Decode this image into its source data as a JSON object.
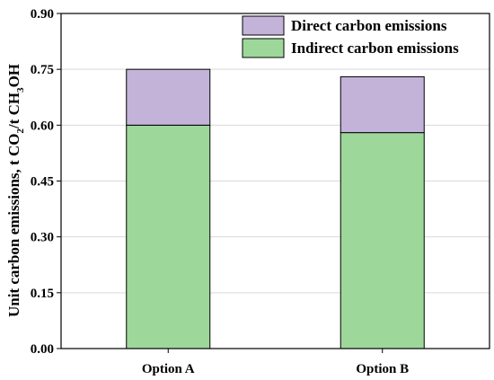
{
  "chart_data": {
    "type": "bar",
    "stacked": true,
    "categories": [
      "Option A",
      "Option B"
    ],
    "series": [
      {
        "name": "Indirect carbon emissions",
        "values": [
          0.6,
          0.58
        ],
        "color": "#9dd89a"
      },
      {
        "name": "Direct carbon emissions",
        "values": [
          0.15,
          0.15
        ],
        "color": "#c3b3d9"
      }
    ],
    "ylabel": "Unit carbon emissions, t CO2/t CH3OH",
    "ylim": [
      0,
      0.9
    ],
    "yticks": [
      "0.00",
      "0.15",
      "0.30",
      "0.45",
      "0.60",
      "0.75",
      "0.90"
    ],
    "grid": "horizontal",
    "legend_position": "top-right",
    "legend_order": [
      "Direct carbon emissions",
      "Indirect carbon emissions"
    ]
  }
}
